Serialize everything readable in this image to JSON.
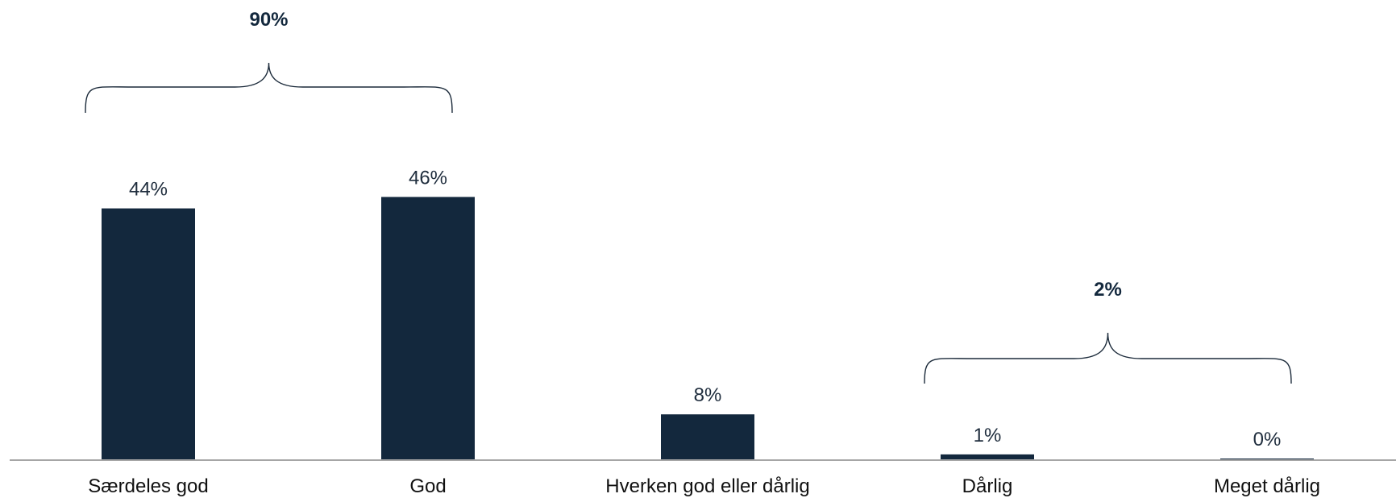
{
  "chart_data": {
    "type": "bar",
    "categories": [
      "Særdeles god",
      "God",
      "Hverken god eller dårlig",
      "Dårlig",
      "Meget dårlig"
    ],
    "values": [
      44,
      46,
      8,
      1,
      0
    ],
    "value_labels": [
      "44%",
      "46%",
      "8%",
      "1%",
      "0%"
    ],
    "title": "",
    "xlabel": "",
    "ylabel": "",
    "ylim": [
      0,
      50
    ],
    "grid": false,
    "legend": "none",
    "bar_color": "#13283d",
    "groups": [
      {
        "label": "90%",
        "from": 0,
        "to": 1
      },
      {
        "label": "2%",
        "from": 3,
        "to": 4
      }
    ]
  }
}
